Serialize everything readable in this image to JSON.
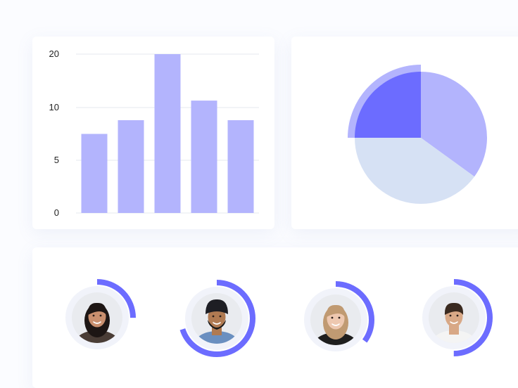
{
  "chart_data": [
    {
      "type": "bar",
      "title": "",
      "xlabel": "",
      "ylabel": "",
      "yticks": [
        "0",
        "5",
        "10",
        "20"
      ],
      "values": [
        7.5,
        8.8,
        20,
        11.3,
        8.8
      ],
      "grid": true,
      "colors": {
        "bar": "#b3b4fd",
        "grid": "#e6e8ef"
      }
    },
    {
      "type": "pie",
      "title": "",
      "values": [
        25,
        35,
        40
      ],
      "highlighted_slice": 0,
      "colors": {
        "slices": [
          "#6c6cff",
          "#b3b4fd",
          "#d6e1f4"
        ],
        "highlight_ring": "#b3b4fd"
      }
    }
  ],
  "team": {
    "members": [
      {
        "avatar_icon": "woman-long-dark-hair-avatar-icon",
        "progress": 0.25,
        "skin": "#c98f6e",
        "hair": "#1d1614",
        "shirt": "#4a3d36"
      },
      {
        "avatar_icon": "man-turban-beard-avatar-icon",
        "progress": 0.7,
        "skin": "#b07a52",
        "hair": "#1e1e24",
        "shirt": "#6a8fc0"
      },
      {
        "avatar_icon": "woman-fair-hair-avatar-icon",
        "progress": 0.35,
        "skin": "#eec8b0",
        "hair": "#c09a72",
        "shirt": "#1e1e1e"
      },
      {
        "avatar_icon": "man-curly-hair-avatar-icon",
        "progress": 0.5,
        "skin": "#d8a886",
        "hair": "#3a2a20",
        "shirt": "#f4f4f4"
      }
    ],
    "colors": {
      "ring": "#6c6cff",
      "track": "#f1f3fa",
      "photo_bg": "#e9ebef"
    }
  }
}
